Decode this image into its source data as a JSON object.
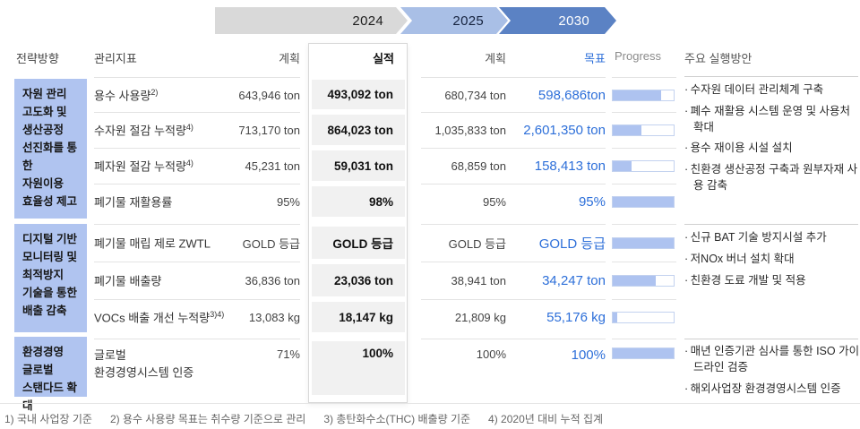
{
  "timeline": {
    "years": [
      "2024",
      "2025",
      "2030"
    ]
  },
  "header": {
    "strategy": "전략방향",
    "indicator": "관리지표",
    "plan": "계획",
    "actual": "실적",
    "target": "목표",
    "progress": "Progress",
    "actions": "주요 실행방안"
  },
  "sections": [
    {
      "strategy": "자원 관리\n고도화 및\n생산공정\n선진화를 통한\n자원이용\n효율성 제고",
      "actions": [
        "수자원 데이터 관리체계 구축",
        "폐수 재활용 시스템 운영 및 사용처 확대",
        "용수 재이용 시설 설치",
        "친환경 생산공정 구축과 원부자재 사용 감축"
      ]
    },
    {
      "strategy": "디지털 기반\n모니터링 및\n최적방지\n기술을 통한\n배출 감축",
      "actions": [
        "신규 BAT 기술 방지시설 추가",
        "저NOx 버너 설치 확대",
        "친환경 도료 개발 및 적용"
      ]
    },
    {
      "strategy": "환경경영\n글로벌\n스탠다드 확대",
      "actions": [
        "매년 인증기관 심사를 통한 ISO 가이드라인 검증",
        "해외사업장 환경경영시스템 인증"
      ]
    }
  ],
  "rows": [
    {
      "indicator": "용수 사용량",
      "sup": "2)",
      "plan_2024": "643,946 ton",
      "actual_2024": "493,092 ton",
      "plan_2025": "680,734 ton",
      "target_2030": "598,686ton",
      "progress_pct": 80
    },
    {
      "indicator": "수자원 절감 누적량",
      "sup": "4)",
      "plan_2024": "713,170 ton",
      "actual_2024": "864,023 ton",
      "plan_2025": "1,035,833 ton",
      "target_2030": "2,601,350 ton",
      "progress_pct": 47
    },
    {
      "indicator": "폐자원 절감 누적량",
      "sup": "4)",
      "plan_2024": "45,231 ton",
      "actual_2024": "59,031 ton",
      "plan_2025": "68,859 ton",
      "target_2030": "158,413 ton",
      "progress_pct": 31
    },
    {
      "indicator": "폐기물 재활용률",
      "sup": "",
      "plan_2024": "95%",
      "actual_2024": "98%",
      "plan_2025": "95%",
      "target_2030": "95%",
      "progress_pct": 100
    },
    {
      "indicator": "폐기물 매립 제로 ZWTL",
      "sup": "",
      "plan_2024": "GOLD 등급",
      "actual_2024": "GOLD 등급",
      "plan_2025": "GOLD 등급",
      "target_2030": "GOLD 등급",
      "progress_pct": 100
    },
    {
      "indicator": "폐기물 배출량",
      "sup": "",
      "plan_2024": "36,836 ton",
      "actual_2024": "23,036 ton",
      "plan_2025": "38,941 ton",
      "target_2030": "34,247 ton",
      "progress_pct": 70
    },
    {
      "indicator": "VOCs 배출 개선 누적량",
      "sup": "3)4)",
      "plan_2024": "13,083 kg",
      "actual_2024": "18,147 kg",
      "plan_2025": "21,809 kg",
      "target_2030": "55,176 kg",
      "progress_pct": 8
    },
    {
      "indicator": "글로벌\n환경경영시스템 인증",
      "sup": "",
      "plan_2024": "71%",
      "actual_2024": "100%",
      "plan_2025": "100%",
      "target_2030": "100%",
      "progress_pct": 100
    }
  ],
  "footnotes": [
    "1) 국내 사업장 기준",
    "2) 용수 사용량 목표는 취수량 기준으로 관리",
    "3) 총탄화수소(THC) 배출량 기준",
    "4) 2020년 대비 누적 집계"
  ],
  "colors": {
    "section_label_bg": "#b0c4f0",
    "chevron_2024": "#d9d9d9",
    "chevron_2025": "#a9bfe6",
    "chevron_2030": "#5b82c4",
    "target_text": "#2d6fd9",
    "progress_fill": "#aec3f0"
  }
}
